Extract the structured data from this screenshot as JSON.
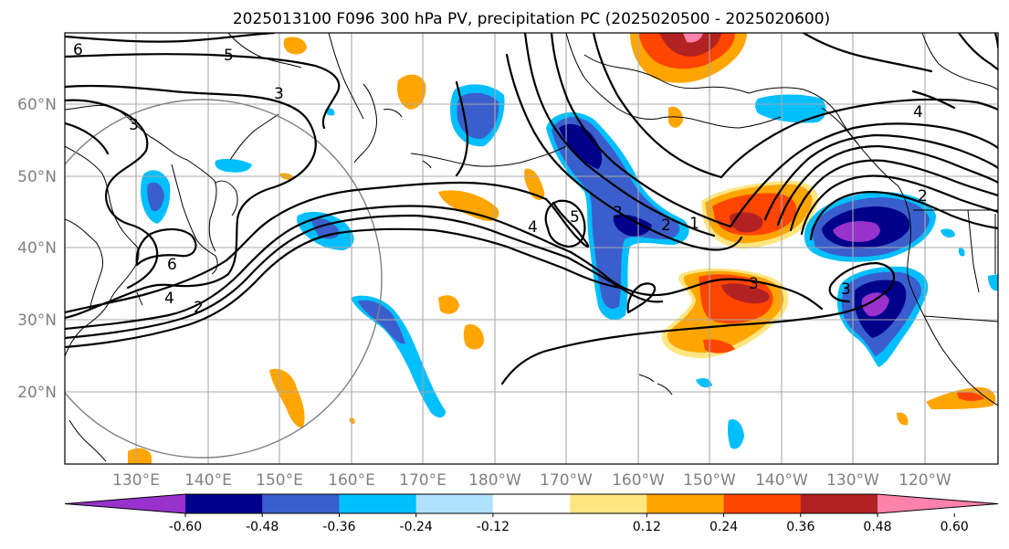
{
  "title": "2025013100 F096 300 hPa PV, precipitation PC (2025020500 - 2025020600)",
  "lat_labels": [
    "60°N",
    "50°N",
    "40°N",
    "30°N",
    "20°N"
  ],
  "lon_labels": [
    "130°E",
    "140°E",
    "150°E",
    "160°E",
    "170°E",
    "180°W",
    "170°W",
    "160°W",
    "150°W",
    "140°W",
    "130°W",
    "120°W"
  ],
  "colorbar": {
    "colors": [
      "#9932cc",
      "#00008b",
      "#3a5fcd",
      "#00bfff",
      "#b0e2ff",
      "#ffffff",
      "#ffe680",
      "#ffa500",
      "#ff4500",
      "#b22222",
      "#ff82ab"
    ],
    "tick_labels": [
      "-0.60",
      "-0.48",
      "-0.36",
      "-0.24",
      "-0.12",
      "0.12",
      "0.24",
      "0.36",
      "0.48",
      "0.60"
    ]
  },
  "pv_contour_labels": [
    "6",
    "5",
    "3",
    "3",
    "6",
    "4",
    "2",
    "4",
    "5",
    "3",
    "2",
    "1",
    "3",
    "3",
    "4",
    "2"
  ],
  "shading_colors": {
    "neg_light": "#b0e2ff",
    "neg_mid": "#00bfff",
    "neg_strong": "#3a5fcd",
    "neg_deep": "#00008b",
    "neg_max": "#9932cc",
    "pos_light": "#ffe680",
    "pos_mid": "#ffa500",
    "pos_strong": "#ff4500",
    "pos_deep": "#b22222",
    "pos_max": "#ff82ab"
  }
}
